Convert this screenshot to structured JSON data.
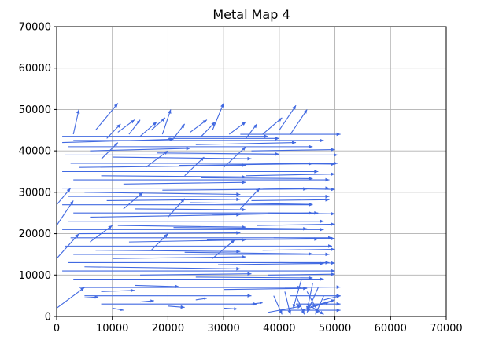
{
  "chart_data": {
    "type": "quiver",
    "title": "Metal Map 4",
    "xlabel": "",
    "ylabel": "",
    "xlim": [
      0,
      70000
    ],
    "ylim": [
      0,
      70000
    ],
    "x_ticks": [
      "0",
      "10000",
      "20000",
      "30000",
      "40000",
      "50000",
      "60000",
      "70000"
    ],
    "y_ticks": [
      "0",
      "10000",
      "20000",
      "30000",
      "40000",
      "50000",
      "60000",
      "70000"
    ],
    "grid": true,
    "arrow_color": "#4169e1",
    "dense_region": {
      "x_range": [
        0,
        51000
      ],
      "y_range": [
        0,
        51000
      ],
      "predominant_direction": "rightward"
    },
    "vectors": [
      {
        "x": 1000,
        "y": 43500,
        "u": 37000,
        "v": 0
      },
      {
        "x": 3000,
        "y": 42500,
        "u": 45000,
        "v": 0
      },
      {
        "x": 2000,
        "y": 41000,
        "u": 44000,
        "v": 0
      },
      {
        "x": 1500,
        "y": 39000,
        "u": 49000,
        "v": 0
      },
      {
        "x": 2500,
        "y": 37000,
        "u": 48000,
        "v": 0
      },
      {
        "x": 1000,
        "y": 35000,
        "u": 46000,
        "v": 0
      },
      {
        "x": 3000,
        "y": 33000,
        "u": 46000,
        "v": 0
      },
      {
        "x": 1000,
        "y": 31000,
        "u": 48000,
        "v": 0
      },
      {
        "x": 2000,
        "y": 29000,
        "u": 47000,
        "v": 0
      },
      {
        "x": 1000,
        "y": 27000,
        "u": 45000,
        "v": 0
      },
      {
        "x": 3000,
        "y": 25000,
        "u": 44000,
        "v": 0
      },
      {
        "x": 2000,
        "y": 23000,
        "u": 46000,
        "v": 0
      },
      {
        "x": 1000,
        "y": 21000,
        "u": 47000,
        "v": 0
      },
      {
        "x": 2500,
        "y": 19000,
        "u": 47000,
        "v": 0
      },
      {
        "x": 1500,
        "y": 17000,
        "u": 48000,
        "v": 0
      },
      {
        "x": 3000,
        "y": 15000,
        "u": 46000,
        "v": 0
      },
      {
        "x": 2000,
        "y": 13000,
        "u": 47000,
        "v": 0
      },
      {
        "x": 1000,
        "y": 11000,
        "u": 49000,
        "v": 0
      },
      {
        "x": 3000,
        "y": 9000,
        "u": 45000,
        "v": 0
      },
      {
        "x": 4000,
        "y": 7000,
        "u": 40000,
        "v": 0
      },
      {
        "x": 5000,
        "y": 5000,
        "u": 30000,
        "v": 0
      },
      {
        "x": 8000,
        "y": 3000,
        "u": 28000,
        "v": 0
      },
      {
        "x": 1000,
        "y": 42000,
        "u": 20000,
        "v": 800
      },
      {
        "x": 6000,
        "y": 40000,
        "u": 18000,
        "v": 600
      },
      {
        "x": 10000,
        "y": 38500,
        "u": 25000,
        "v": -400
      },
      {
        "x": 4000,
        "y": 36000,
        "u": 30000,
        "v": 500
      },
      {
        "x": 8000,
        "y": 34000,
        "u": 26000,
        "v": -300
      },
      {
        "x": 12000,
        "y": 32000,
        "u": 22000,
        "v": 400
      },
      {
        "x": 5000,
        "y": 30000,
        "u": 28000,
        "v": -500
      },
      {
        "x": 9000,
        "y": 28000,
        "u": 24000,
        "v": 300
      },
      {
        "x": 14000,
        "y": 26000,
        "u": 20000,
        "v": -200
      },
      {
        "x": 6000,
        "y": 24000,
        "u": 27000,
        "v": 600
      },
      {
        "x": 11000,
        "y": 22000,
        "u": 23000,
        "v": -400
      },
      {
        "x": 4000,
        "y": 20000,
        "u": 29000,
        "v": 200
      },
      {
        "x": 13000,
        "y": 18000,
        "u": 21000,
        "v": 500
      },
      {
        "x": 7000,
        "y": 16000,
        "u": 26000,
        "v": -300
      },
      {
        "x": 10000,
        "y": 14000,
        "u": 24000,
        "v": 400
      },
      {
        "x": 5000,
        "y": 12000,
        "u": 28000,
        "v": -500
      },
      {
        "x": 15000,
        "y": 10000,
        "u": 20000,
        "v": 300
      },
      {
        "x": 20000,
        "y": 43000,
        "u": 20000,
        "v": 0
      },
      {
        "x": 25000,
        "y": 41500,
        "u": 18000,
        "v": 500
      },
      {
        "x": 18000,
        "y": 39500,
        "u": 22000,
        "v": -300
      },
      {
        "x": 22000,
        "y": 36500,
        "u": 24000,
        "v": 400
      },
      {
        "x": 26000,
        "y": 33500,
        "u": 20000,
        "v": -200
      },
      {
        "x": 19000,
        "y": 30500,
        "u": 26000,
        "v": 300
      },
      {
        "x": 24000,
        "y": 27500,
        "u": 22000,
        "v": -400
      },
      {
        "x": 28000,
        "y": 24500,
        "u": 18000,
        "v": 500
      },
      {
        "x": 21000,
        "y": 21500,
        "u": 24000,
        "v": -300
      },
      {
        "x": 27000,
        "y": 18500,
        "u": 20000,
        "v": 200
      },
      {
        "x": 23000,
        "y": 15500,
        "u": 23000,
        "v": -400
      },
      {
        "x": 29000,
        "y": 12500,
        "u": 19000,
        "v": 300
      },
      {
        "x": 25000,
        "y": 9500,
        "u": 21000,
        "v": -200
      },
      {
        "x": 30000,
        "y": 6500,
        "u": 15000,
        "v": 300
      },
      {
        "x": 33000,
        "y": 44000,
        "u": 18000,
        "v": 0
      },
      {
        "x": 35000,
        "y": 40000,
        "u": 15000,
        "v": 300
      },
      {
        "x": 36000,
        "y": 37000,
        "u": 14000,
        "v": -200
      },
      {
        "x": 34000,
        "y": 34000,
        "u": 16000,
        "v": 400
      },
      {
        "x": 37000,
        "y": 31000,
        "u": 13000,
        "v": -300
      },
      {
        "x": 35000,
        "y": 28000,
        "u": 14000,
        "v": 200
      },
      {
        "x": 38000,
        "y": 25000,
        "u": 12000,
        "v": -200
      },
      {
        "x": 36000,
        "y": 22000,
        "u": 14000,
        "v": 300
      },
      {
        "x": 39000,
        "y": 19000,
        "u": 11000,
        "v": -200
      },
      {
        "x": 37000,
        "y": 16000,
        "u": 13000,
        "v": 200
      },
      {
        "x": 40000,
        "y": 13000,
        "u": 10000,
        "v": -100
      },
      {
        "x": 38000,
        "y": 10000,
        "u": 12000,
        "v": 200
      },
      {
        "x": 41000,
        "y": 7000,
        "u": 10000,
        "v": 100
      },
      {
        "x": 42000,
        "y": 5000,
        "u": 9000,
        "v": 0
      },
      {
        "x": 43000,
        "y": 3000,
        "u": 8000,
        "v": 0
      },
      {
        "x": 40000,
        "y": 1500,
        "u": 11000,
        "v": 0
      },
      {
        "x": 3000,
        "y": 44000,
        "u": 1000,
        "v": 6000
      },
      {
        "x": 7000,
        "y": 45000,
        "u": 4000,
        "v": 6500
      },
      {
        "x": 9000,
        "y": 43000,
        "u": 2500,
        "v": 3500
      },
      {
        "x": 11000,
        "y": 44500,
        "u": 3000,
        "v": 3000
      },
      {
        "x": 13000,
        "y": 44000,
        "u": 2000,
        "v": 3500
      },
      {
        "x": 15000,
        "y": 43500,
        "u": 3000,
        "v": 3500
      },
      {
        "x": 17000,
        "y": 45000,
        "u": 2500,
        "v": 3000
      },
      {
        "x": 19000,
        "y": 44000,
        "u": 1500,
        "v": 6000
      },
      {
        "x": 21000,
        "y": 43000,
        "u": 2000,
        "v": 3500
      },
      {
        "x": 24000,
        "y": 44500,
        "u": 3000,
        "v": 3000
      },
      {
        "x": 26000,
        "y": 43500,
        "u": 2500,
        "v": 3500
      },
      {
        "x": 28000,
        "y": 45000,
        "u": 2000,
        "v": 6500
      },
      {
        "x": 31000,
        "y": 44000,
        "u": 3000,
        "v": 3000
      },
      {
        "x": 34000,
        "y": 43000,
        "u": 2000,
        "v": 3500
      },
      {
        "x": 37000,
        "y": 44000,
        "u": 3500,
        "v": 4000
      },
      {
        "x": 40000,
        "y": 45000,
        "u": 3000,
        "v": 6000
      },
      {
        "x": 42000,
        "y": 44000,
        "u": 3000,
        "v": 6000
      },
      {
        "x": 8000,
        "y": 38000,
        "u": 3000,
        "v": 4000
      },
      {
        "x": 16000,
        "y": 36000,
        "u": 4000,
        "v": 4000
      },
      {
        "x": 23000,
        "y": 34000,
        "u": 3500,
        "v": 4500
      },
      {
        "x": 30000,
        "y": 36000,
        "u": 4000,
        "v": 5000
      },
      {
        "x": 12000,
        "y": 26000,
        "u": 3500,
        "v": 4000
      },
      {
        "x": 20000,
        "y": 24000,
        "u": 3000,
        "v": 4500
      },
      {
        "x": 33000,
        "y": 26000,
        "u": 3500,
        "v": 5000
      },
      {
        "x": 6000,
        "y": 18000,
        "u": 4000,
        "v": 4000
      },
      {
        "x": 17000,
        "y": 16000,
        "u": 3000,
        "v": 4000
      },
      {
        "x": 28000,
        "y": 14000,
        "u": 4000,
        "v": 4500
      },
      {
        "x": 0,
        "y": 2000,
        "u": 5000,
        "v": 5000
      },
      {
        "x": 0,
        "y": 14000,
        "u": 4000,
        "v": 6000
      },
      {
        "x": 0,
        "y": 22000,
        "u": 3000,
        "v": 6000
      },
      {
        "x": 0,
        "y": 27000,
        "u": 2500,
        "v": 4000
      },
      {
        "x": 44000,
        "y": 9000,
        "u": -1500,
        "v": -7000
      },
      {
        "x": 46000,
        "y": 8000,
        "u": -1000,
        "v": -6500
      },
      {
        "x": 45000,
        "y": 6000,
        "u": 2000,
        "v": -5000
      },
      {
        "x": 47000,
        "y": 7000,
        "u": -2000,
        "v": -6000
      },
      {
        "x": 43000,
        "y": 5000,
        "u": 1500,
        "v": -4500
      },
      {
        "x": 48000,
        "y": 5000,
        "u": -1500,
        "v": -4500
      },
      {
        "x": 41000,
        "y": 6000,
        "u": 1000,
        "v": -5500
      },
      {
        "x": 39000,
        "y": 5000,
        "u": 1500,
        "v": -4500
      },
      {
        "x": 45000,
        "y": 3000,
        "u": 3000,
        "v": -2500
      },
      {
        "x": 38000,
        "y": 1000,
        "u": 6000,
        "v": 1500
      },
      {
        "x": 44000,
        "y": 1500,
        "u": 5000,
        "v": 2000
      },
      {
        "x": 46000,
        "y": 2500,
        "u": 4000,
        "v": 1500
      },
      {
        "x": 48000,
        "y": 4000,
        "u": 3000,
        "v": 1000
      },
      {
        "x": 10000,
        "y": 2000,
        "u": 2000,
        "v": -500
      },
      {
        "x": 15000,
        "y": 3500,
        "u": 2500,
        "v": 300
      },
      {
        "x": 20000,
        "y": 2500,
        "u": 3000,
        "v": -300
      },
      {
        "x": 25000,
        "y": 4000,
        "u": 2000,
        "v": 400
      },
      {
        "x": 30000,
        "y": 2000,
        "u": 2500,
        "v": -200
      },
      {
        "x": 35000,
        "y": 3000,
        "u": 2000,
        "v": 300
      },
      {
        "x": 5000,
        "y": 4500,
        "u": 2500,
        "v": 200
      },
      {
        "x": 8000,
        "y": 6000,
        "u": 6000,
        "v": 300
      },
      {
        "x": 14000,
        "y": 7500,
        "u": 8000,
        "v": -300
      }
    ]
  }
}
